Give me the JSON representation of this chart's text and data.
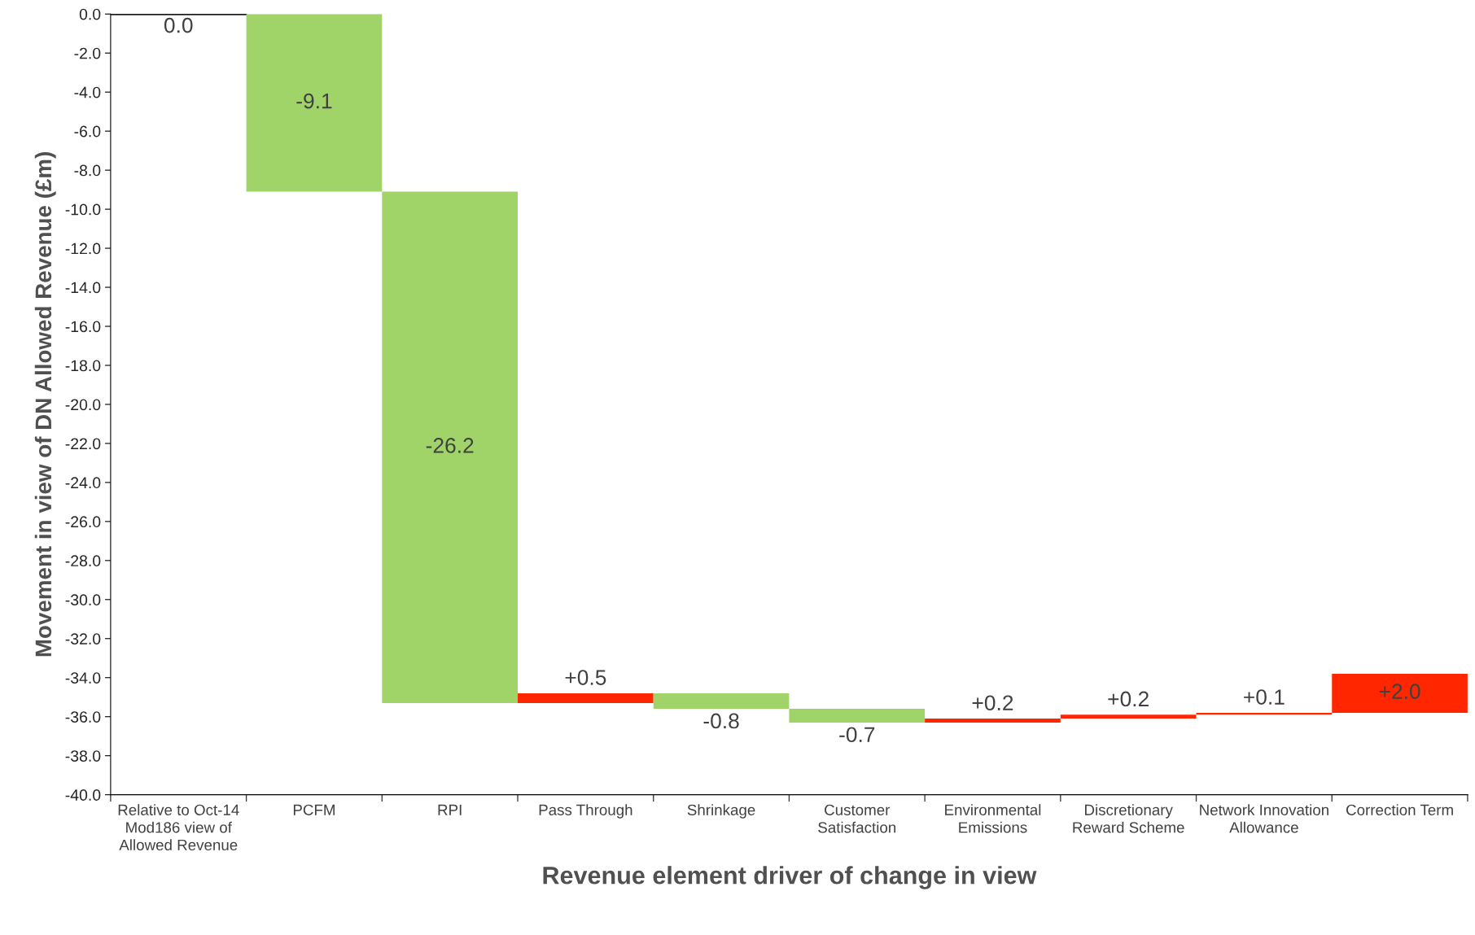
{
  "chart_data": {
    "type": "bar",
    "xlabel": "Revenue element driver of change in view",
    "ylabel": "Movement in view of DN Allowed Revenue (£m)",
    "categories": [
      "Relative to Oct-14 Mod186 view of Allowed Revenue",
      "PCFM",
      "RPI",
      "Pass Through",
      "Shrinkage",
      "Customer Satisfaction",
      "Environmental Emissions",
      "Discretionary Reward Scheme",
      "Network Innovation Allowance",
      "Correction Term"
    ],
    "values": [
      0.0,
      -9.1,
      -26.2,
      0.5,
      -0.8,
      -0.7,
      0.2,
      0.2,
      0.1,
      2.0
    ],
    "base": [
      0.0,
      0.0,
      -9.1,
      -35.3,
      -34.8,
      -35.6,
      -36.3,
      -36.1,
      -35.9,
      -35.8
    ],
    "colors": [
      "#ffffff",
      "#a0d468",
      "#a0d468",
      "#ff2600",
      "#a0d468",
      "#a0d468",
      "#ff2600",
      "#ff2600",
      "#ff2600",
      "#ff2600"
    ],
    "value_labels": [
      "0.0",
      "-9.1",
      "-26.2",
      "+0.5",
      "-0.8",
      "-0.7",
      "+0.2",
      "+0.2",
      "+0.1",
      "+2.0"
    ],
    "ylim": [
      -40,
      0
    ],
    "yticks": [
      {
        "value": 0,
        "label": "0.0"
      },
      {
        "value": -2,
        "label": "-2.0"
      },
      {
        "value": -4,
        "label": "-4.0"
      },
      {
        "value": -6,
        "label": "-6.0"
      },
      {
        "value": -8,
        "label": "-8.0"
      },
      {
        "value": -10,
        "label": "-10.0"
      },
      {
        "value": -12,
        "label": "-12.0"
      },
      {
        "value": -14,
        "label": "-14.0"
      },
      {
        "value": -16,
        "label": "-16.0"
      },
      {
        "value": -18,
        "label": "-18.0"
      },
      {
        "value": -20,
        "label": "-20.0"
      },
      {
        "value": -22,
        "label": "-22.0"
      },
      {
        "value": -24,
        "label": "-24.0"
      },
      {
        "value": -26,
        "label": "-26.0"
      },
      {
        "value": -28,
        "label": "-28.0"
      },
      {
        "value": -30,
        "label": "-30.0"
      },
      {
        "value": -32,
        "label": "-32.0"
      },
      {
        "value": -34,
        "label": "-34.0"
      },
      {
        "value": -36,
        "label": "-36.0"
      },
      {
        "value": -38,
        "label": "-38.0"
      },
      {
        "value": -40,
        "label": "-40.0"
      }
    ],
    "grid": false,
    "legend": false
  }
}
